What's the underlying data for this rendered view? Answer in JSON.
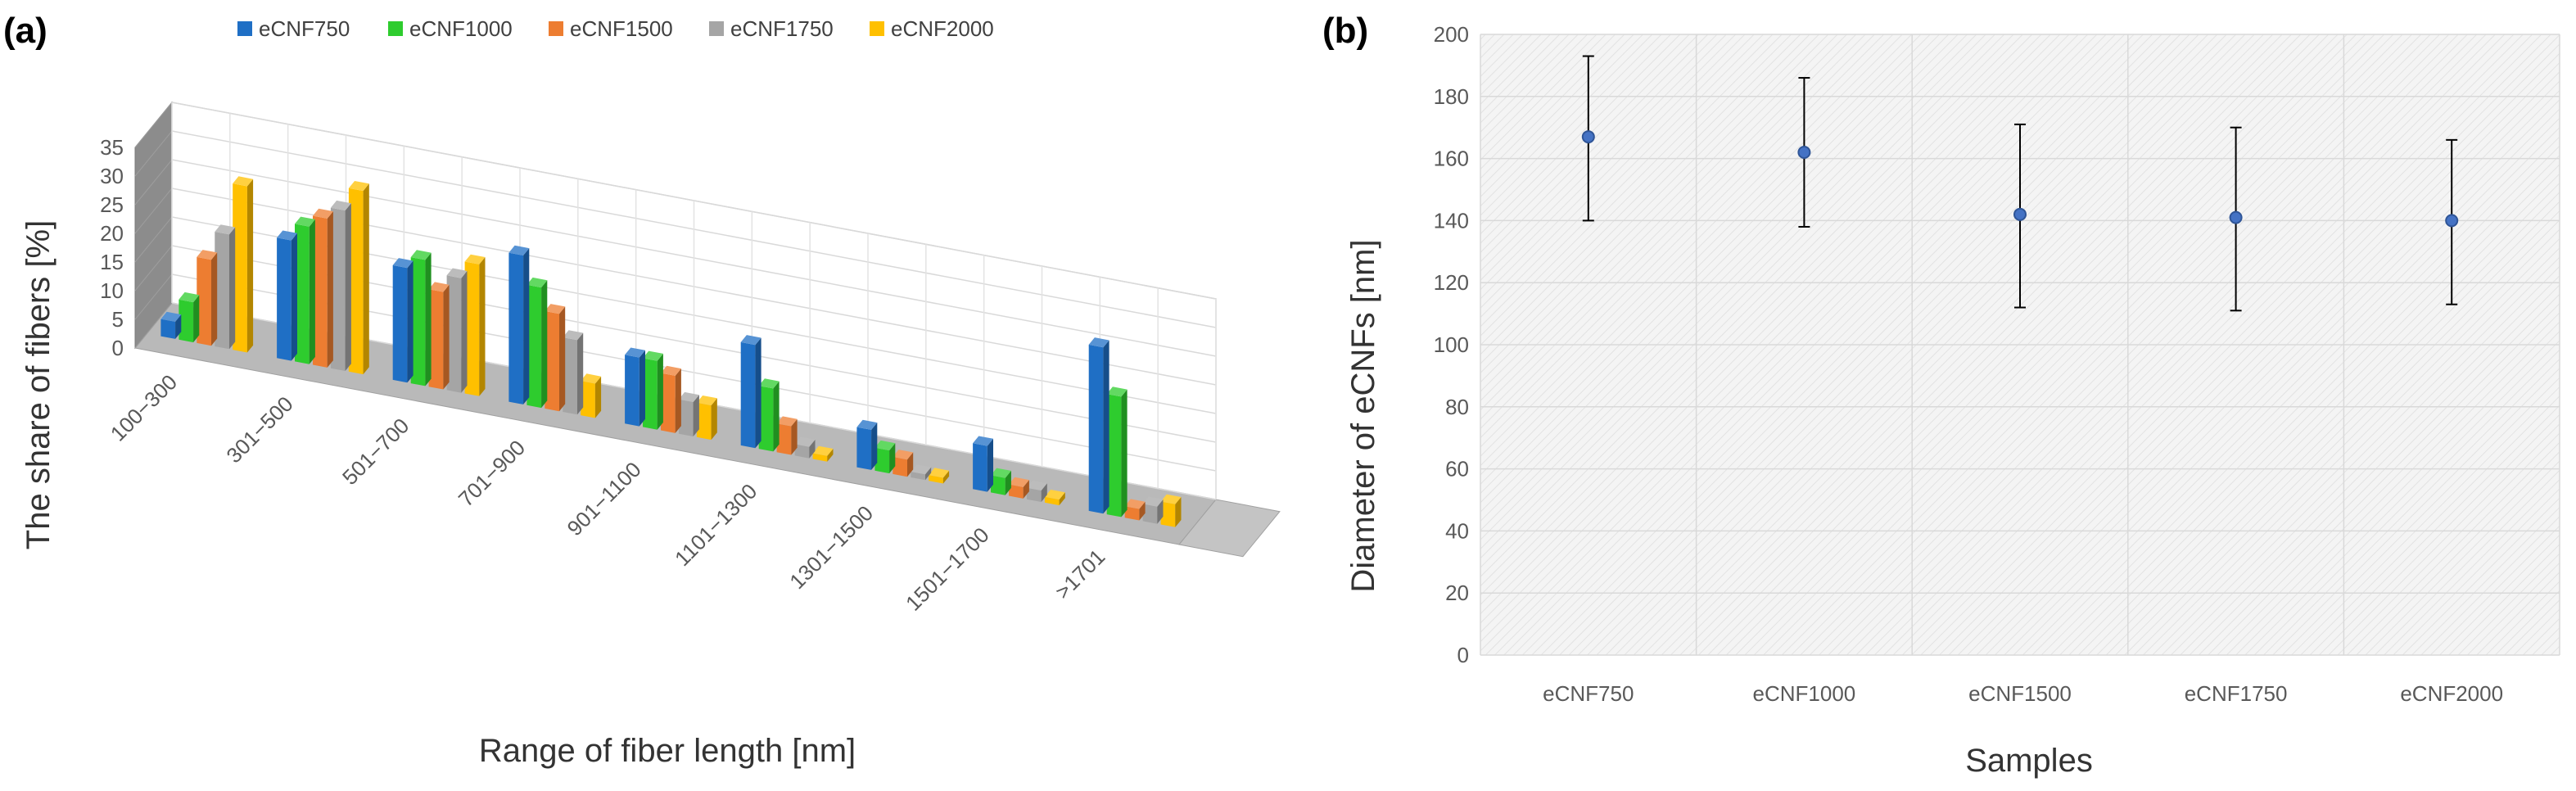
{
  "chart_data": [
    {
      "type": "bar",
      "panel_label": "(a)",
      "title": "",
      "xlabel": "Range of fiber length [nm]",
      "ylabel": "The share of fibers [%]",
      "ylim": [
        0,
        35
      ],
      "yticks": [
        "0",
        "5",
        "10",
        "15",
        "20",
        "25",
        "30",
        "35"
      ],
      "categories": [
        "100−300",
        "301−500",
        "501−700",
        "701−900",
        "901−1100",
        "1101−1300",
        "1301−1500",
        "1501−1700",
        ">1701"
      ],
      "legend_position": "top",
      "series": [
        {
          "name": "eCNF750",
          "color": "#1f6fc5",
          "values": [
            3,
            21,
            20,
            26,
            12,
            18,
            7,
            8,
            29
          ]
        },
        {
          "name": "eCNF1000",
          "color": "#2ecc2e",
          "values": [
            7,
            24,
            22,
            21,
            12,
            11,
            4,
            3,
            21
          ]
        },
        {
          "name": "eCNF1500",
          "color": "#ed7d31",
          "values": [
            15,
            26,
            17,
            17,
            10,
            5,
            3,
            2,
            2
          ]
        },
        {
          "name": "eCNF1750",
          "color": "#a5a5a5",
          "values": [
            20,
            28,
            20,
            13,
            6,
            2,
            1,
            2,
            3
          ]
        },
        {
          "name": "eCNF2000",
          "color": "#ffc000",
          "values": [
            29,
            32,
            23,
            6,
            6,
            1,
            1,
            1,
            4
          ]
        }
      ]
    },
    {
      "type": "scatter",
      "panel_label": "(b)",
      "title": "",
      "xlabel": "Samples",
      "ylabel": "Diameter of eCNFs [nm]",
      "ylim": [
        0,
        200
      ],
      "yticks": [
        "0",
        "20",
        "40",
        "60",
        "80",
        "100",
        "120",
        "140",
        "160",
        "180",
        "200"
      ],
      "categories": [
        "eCNF750",
        "eCNF1000",
        "eCNF1500",
        "eCNF1750",
        "eCNF2000"
      ],
      "series": [
        {
          "name": "Diameter",
          "color": "#4472c4",
          "values": [
            167,
            162,
            142,
            141,
            140
          ],
          "error_low": [
            140,
            138,
            112,
            111,
            113
          ],
          "error_high": [
            193,
            186,
            171,
            170,
            166
          ]
        }
      ]
    }
  ]
}
